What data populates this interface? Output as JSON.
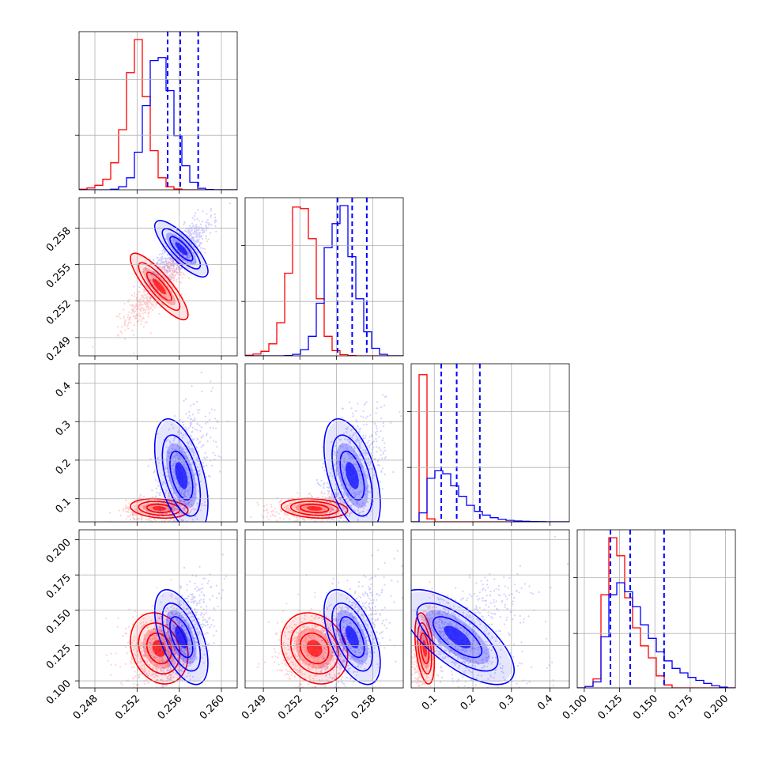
{
  "chart_data": {
    "type": "corner",
    "colors": {
      "red": "#ff0000",
      "blue": "#0000ff"
    },
    "grid": true,
    "series": [
      {
        "color": "#ff0000",
        "means": [
          0.2541,
          0.2532,
          0.075,
          0.123
        ],
        "sds": [
          0.0013,
          0.0013,
          0.012,
          0.012
        ],
        "corr": [
          [
            1,
            0.85,
            0.2,
            0.2
          ],
          [
            0.85,
            1,
            0.2,
            0.2
          ],
          [
            0.2,
            0.2,
            1,
            0.4
          ],
          [
            0.2,
            0.2,
            0.4,
            1
          ]
        ]
      },
      {
        "color": "#0000ff",
        "means": [
          0.2562,
          0.2563,
          0.16,
          0.131
        ],
        "sds": [
          0.0012,
          0.0011,
          0.07,
          0.016
        ],
        "corr": [
          [
            1,
            0.8,
            0.5,
            0.55
          ],
          [
            0.8,
            1,
            0.5,
            0.55
          ],
          [
            0.5,
            0.5,
            1,
            0.7
          ],
          [
            0.55,
            0.55,
            0.7,
            1
          ]
        ]
      }
    ],
    "quantile_lines": [
      {
        "param": 0,
        "color": "#0000ff",
        "values": [
          0.2549,
          0.2561,
          0.2578
        ]
      },
      {
        "param": 1,
        "color": "#0000ff",
        "values": [
          0.2551,
          0.2563,
          0.2575
        ]
      },
      {
        "param": 2,
        "color": "#0000ff",
        "values": [
          0.118,
          0.158,
          0.218
        ]
      },
      {
        "param": 3,
        "color": "#0000ff",
        "values": [
          0.1185,
          0.1325,
          0.1565
        ]
      }
    ],
    "params": [
      {
        "range": [
          0.2465,
          0.2615
        ],
        "ticks": [
          "0.248",
          "0.252",
          "0.256",
          "0.260"
        ],
        "tick_values": [
          0.248,
          0.252,
          0.256,
          0.26
        ]
      },
      {
        "range": [
          0.2475,
          0.2605
        ],
        "ticks": [
          "0.249",
          "0.252",
          "0.255",
          "0.258"
        ],
        "tick_values": [
          0.249,
          0.252,
          0.255,
          0.258
        ]
      },
      {
        "range": [
          0.04,
          0.45
        ],
        "ticks": [
          "0.1",
          "0.2",
          "0.3",
          "0.4"
        ],
        "tick_values": [
          0.1,
          0.2,
          0.3,
          0.4
        ]
      },
      {
        "range": [
          0.095,
          0.207
        ],
        "ticks": [
          "0.100",
          "0.125",
          "0.150",
          "0.175",
          "0.200"
        ],
        "tick_values": [
          0.1,
          0.125,
          0.15,
          0.175,
          0.2
        ]
      }
    ],
    "diagonal_histograms": [
      {
        "param": 0,
        "bins": 20,
        "red": [
          0.004,
          0.012,
          0.03,
          0.07,
          0.18,
          0.4,
          0.78,
          1.0,
          0.62,
          0.26,
          0.08,
          0.02,
          0.005,
          0,
          0,
          0,
          0,
          0,
          0,
          0
        ],
        "blue": [
          0,
          0,
          0,
          0,
          0.004,
          0.02,
          0.08,
          0.25,
          0.56,
          0.86,
          0.88,
          0.66,
          0.36,
          0.16,
          0.05,
          0.01,
          0.002,
          0,
          0,
          0
        ]
      },
      {
        "param": 1,
        "bins": 20,
        "red": [
          0.004,
          0.012,
          0.03,
          0.08,
          0.22,
          0.55,
          0.99,
          0.98,
          0.78,
          0.38,
          0.13,
          0.035,
          0.008,
          0.002,
          0,
          0,
          0,
          0,
          0,
          0
        ],
        "blue": [
          0,
          0,
          0,
          0,
          0,
          0.002,
          0.01,
          0.04,
          0.13,
          0.35,
          0.72,
          0.88,
          1.0,
          0.66,
          0.38,
          0.16,
          0.05,
          0.01,
          0,
          0
        ],
        "note_scale": 1
      },
      {
        "param": 2,
        "bins": 20,
        "red": [
          0,
          0.98,
          0.02,
          0,
          0,
          0,
          0,
          0,
          0,
          0,
          0,
          0,
          0,
          0,
          0,
          0,
          0,
          0,
          0,
          0
        ],
        "blue": [
          0,
          0.06,
          0.29,
          0.34,
          0.32,
          0.24,
          0.17,
          0.11,
          0.07,
          0.045,
          0.028,
          0.017,
          0.01,
          0.006,
          0.004,
          0.002,
          0.001,
          0,
          0,
          0
        ]
      },
      {
        "param": 3,
        "bins": 20,
        "red": [
          0,
          0.01,
          0.06,
          0.62,
          1.0,
          0.88,
          0.6,
          0.4,
          0.28,
          0.2,
          0.08,
          0.02,
          0,
          0,
          0,
          0,
          0,
          0,
          0,
          0
        ],
        "blue": [
          0,
          0.01,
          0.04,
          0.34,
          0.62,
          0.7,
          0.64,
          0.54,
          0.42,
          0.33,
          0.24,
          0.18,
          0.13,
          0.1,
          0.07,
          0.05,
          0.03,
          0.015,
          0.005,
          0
        ]
      }
    ]
  }
}
